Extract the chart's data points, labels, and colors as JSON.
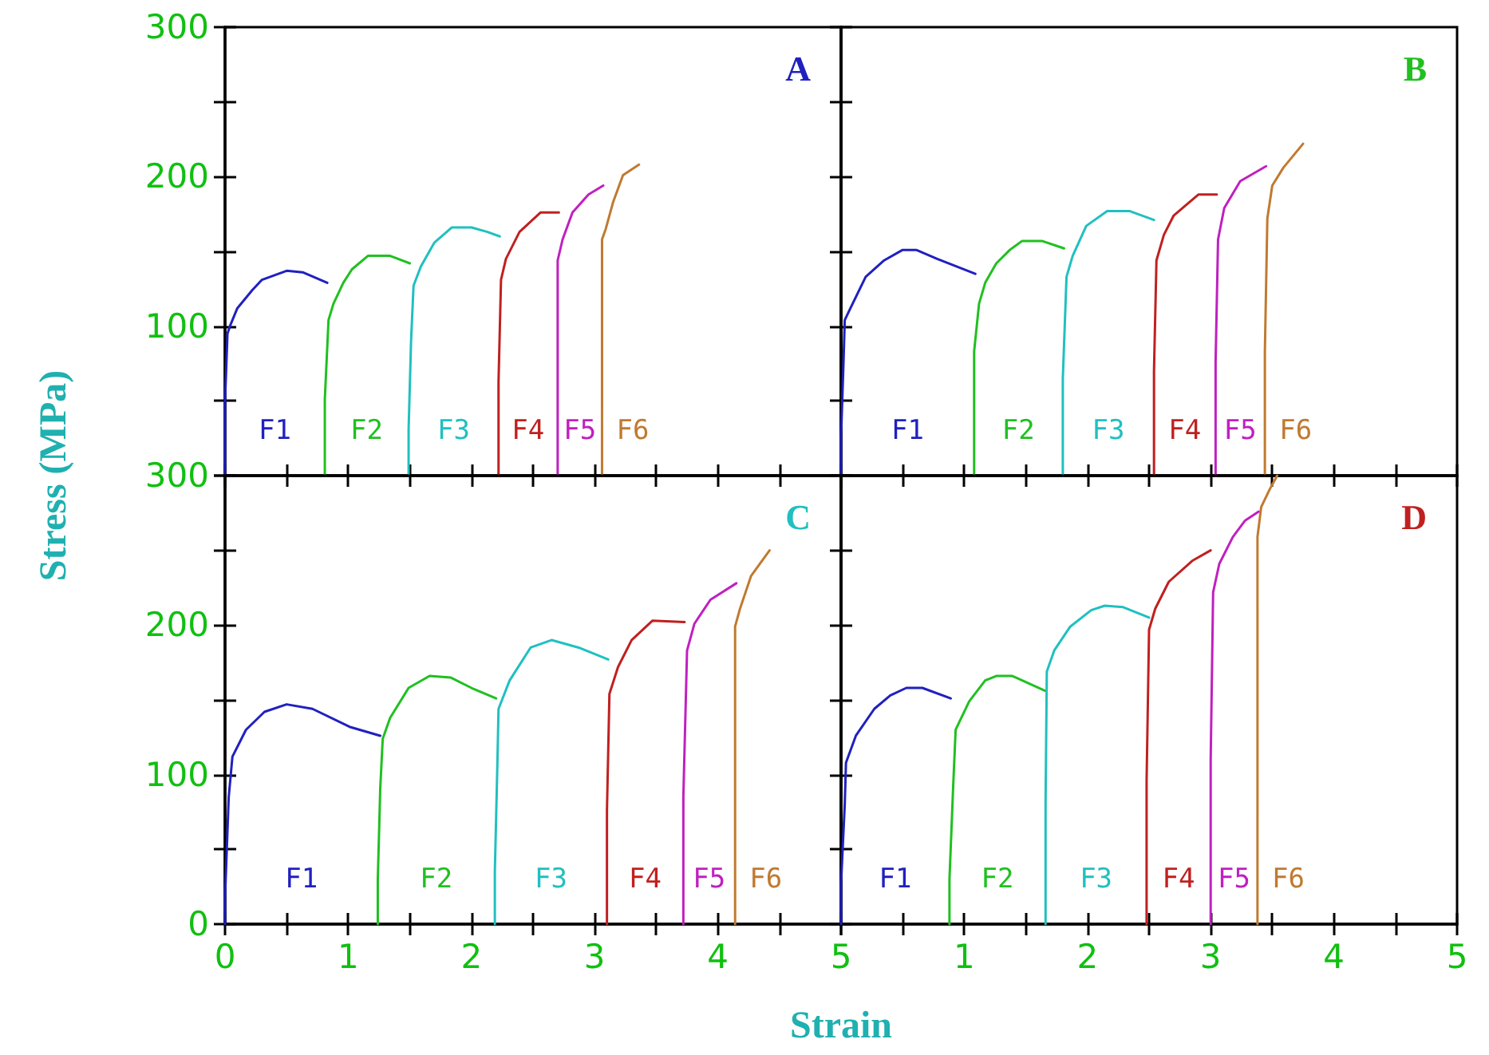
{
  "chart_data": [
    {
      "type": "line",
      "title": "A",
      "marker": "none",
      "line_style": "solid",
      "tick_labels": "y",
      "xlim": [
        0,
        5
      ],
      "ylim": [
        0,
        300
      ],
      "xticks": [
        {
          "value": 0,
          "label": null
        },
        {
          "value": 0.5,
          "label": null
        },
        {
          "value": 1,
          "label": null
        },
        {
          "value": 1.5,
          "label": null
        },
        {
          "value": 2,
          "label": null
        },
        {
          "value": 2.5,
          "label": null
        },
        {
          "value": 3,
          "label": null
        },
        {
          "value": 3.5,
          "label": null
        },
        {
          "value": 4,
          "label": null
        },
        {
          "value": 4.5,
          "label": null
        },
        {
          "value": 5,
          "label": null
        }
      ],
      "yticks": [
        {
          "value": 0,
          "label": null
        },
        {
          "value": 50,
          "label": null
        },
        100,
        {
          "value": 150,
          "label": null
        },
        200,
        {
          "value": 250,
          "label": null
        },
        300
      ],
      "series": [
        {
          "name": "F1",
          "color": "#2020c0",
          "x": [
            0,
            0,
            0.02,
            0.04,
            0.1,
            0.22,
            0.3,
            0.5,
            0.63,
            0.83
          ],
          "values": [
            0,
            50,
            95,
            100,
            112,
            124,
            131,
            137,
            136,
            129
          ]
        },
        {
          "name": "F2",
          "color": "#20c020",
          "x": [
            0.81,
            0.81,
            0.84,
            0.88,
            0.96,
            1.03,
            1.16,
            1.34,
            1.5
          ],
          "values": [
            0,
            51,
            104,
            115,
            129,
            138,
            147,
            147,
            142
          ]
        },
        {
          "name": "F3",
          "color": "#20c0c0",
          "x": [
            1.49,
            1.49,
            1.51,
            1.53,
            1.59,
            1.7,
            1.84,
            2.0,
            2.13,
            2.23
          ],
          "values": [
            0,
            31,
            90,
            127,
            140,
            156,
            166,
            166,
            163,
            160
          ]
        },
        {
          "name": "F4",
          "color": "#c02020",
          "x": [
            2.22,
            2.22,
            2.24,
            2.28,
            2.39,
            2.56,
            2.71
          ],
          "values": [
            0,
            63,
            131,
            145,
            163,
            176,
            176
          ]
        },
        {
          "name": "F5",
          "color": "#c020c0",
          "x": [
            2.7,
            2.7,
            2.74,
            2.82,
            2.95,
            3.07
          ],
          "values": [
            0,
            144,
            158,
            176,
            188,
            194
          ]
        },
        {
          "name": "F6",
          "color": "#c07a30",
          "x": [
            3.06,
            3.06,
            3.09,
            3.15,
            3.23,
            3.36
          ],
          "values": [
            0,
            158,
            165,
            183,
            201,
            208
          ]
        }
      ]
    },
    {
      "type": "line",
      "title": "B",
      "marker": "none",
      "line_style": "solid",
      "tick_labels": false,
      "xlim": [
        0,
        5
      ],
      "ylim": [
        0,
        300
      ],
      "xticks": [
        0,
        0.5,
        1,
        1.5,
        2,
        2.5,
        3,
        3.5,
        4,
        4.5,
        5
      ],
      "yticks": [
        0,
        50,
        100,
        150,
        200,
        250,
        300
      ],
      "series": [
        {
          "name": "F1",
          "color": "#2020c0",
          "x": [
            0,
            0,
            0.02,
            0.03,
            0.07,
            0.2,
            0.35,
            0.5,
            0.61,
            0.78,
            1.09
          ],
          "values": [
            0,
            26,
            76,
            104,
            111,
            133,
            144,
            151,
            151,
            145,
            135
          ]
        },
        {
          "name": "F2",
          "color": "#20c020",
          "x": [
            1.08,
            1.08,
            1.12,
            1.17,
            1.26,
            1.37,
            1.47,
            1.63,
            1.81
          ],
          "values": [
            0,
            83,
            115,
            129,
            142,
            151,
            157,
            157,
            152
          ]
        },
        {
          "name": "F3",
          "color": "#20c0c0",
          "x": [
            1.8,
            1.8,
            1.83,
            1.88,
            1.99,
            2.16,
            2.34,
            2.54
          ],
          "values": [
            0,
            65,
            133,
            147,
            167,
            177,
            177,
            171
          ]
        },
        {
          "name": "F4",
          "color": "#c02020",
          "x": [
            2.54,
            2.54,
            2.56,
            2.62,
            2.7,
            2.9,
            3.05
          ],
          "values": [
            0,
            70,
            144,
            161,
            174,
            188,
            188
          ]
        },
        {
          "name": "F5",
          "color": "#c020c0",
          "x": [
            3.04,
            3.04,
            3.06,
            3.11,
            3.24,
            3.45
          ],
          "values": [
            0,
            76,
            158,
            179,
            197,
            207
          ]
        },
        {
          "name": "F6",
          "color": "#c07a30",
          "x": [
            3.44,
            3.44,
            3.46,
            3.5,
            3.59,
            3.75
          ],
          "values": [
            0,
            83,
            172,
            194,
            206,
            222
          ]
        }
      ]
    },
    {
      "type": "line",
      "title": "C",
      "xlabel": "Strain",
      "ylabel": "Stress (MPa)",
      "marker": "none",
      "line_style": "solid",
      "xlim": [
        0,
        5
      ],
      "ylim": [
        0,
        300
      ],
      "xticks": [
        0,
        {
          "value": 0.5,
          "label": null
        },
        1,
        {
          "value": 1.5,
          "label": null
        },
        2,
        {
          "value": 2.5,
          "label": null
        },
        3,
        {
          "value": 3.5,
          "label": null
        },
        4,
        {
          "value": 4.5,
          "label": null
        },
        5
      ],
      "yticks": [
        0,
        {
          "value": 50,
          "label": null
        },
        100,
        {
          "value": 150,
          "label": null
        },
        200,
        {
          "value": 250,
          "label": null
        },
        300
      ],
      "series": [
        {
          "name": "F1",
          "color": "#2020c0",
          "x": [
            0,
            0,
            0.03,
            0.06,
            0.17,
            0.32,
            0.5,
            0.71,
            1.01,
            1.26
          ],
          "values": [
            0,
            18,
            85,
            112,
            130,
            142,
            147,
            144,
            132,
            126
          ]
        },
        {
          "name": "F2",
          "color": "#20c020",
          "x": [
            1.24,
            1.24,
            1.26,
            1.28,
            1.34,
            1.49,
            1.66,
            1.83,
            2.0,
            2.2
          ],
          "values": [
            0,
            30,
            91,
            124,
            138,
            158,
            166,
            165,
            158,
            151
          ]
        },
        {
          "name": "F3",
          "color": "#20c0c0",
          "x": [
            2.19,
            2.19,
            2.21,
            2.22,
            2.31,
            2.48,
            2.65,
            2.87,
            3.11
          ],
          "values": [
            0,
            35,
            105,
            144,
            163,
            185,
            190,
            185,
            177
          ]
        },
        {
          "name": "F4",
          "color": "#c02020",
          "x": [
            3.1,
            3.1,
            3.12,
            3.19,
            3.3,
            3.47,
            3.73
          ],
          "values": [
            0,
            76,
            154,
            172,
            190,
            203,
            202
          ]
        },
        {
          "name": "F5",
          "color": "#c020c0",
          "x": [
            3.72,
            3.72,
            3.75,
            3.81,
            3.94,
            4.15
          ],
          "values": [
            0,
            85,
            183,
            201,
            217,
            228
          ]
        },
        {
          "name": "F6",
          "color": "#c07a30",
          "x": [
            4.14,
            4.14,
            4.18,
            4.27,
            4.42
          ],
          "values": [
            0,
            199,
            211,
            233,
            250
          ]
        }
      ]
    },
    {
      "type": "line",
      "title": "D",
      "marker": "none",
      "line_style": "solid",
      "tick_labels": "x",
      "xlim": [
        0,
        5
      ],
      "ylim": [
        0,
        300
      ],
      "xticks": [
        {
          "value": 0,
          "label": null
        },
        {
          "value": 0.5,
          "label": null
        },
        1,
        {
          "value": 1.5,
          "label": null
        },
        2,
        {
          "value": 2.5,
          "label": null
        },
        3,
        {
          "value": 3.5,
          "label": null
        },
        4,
        {
          "value": 4.5,
          "label": null
        },
        5
      ],
      "yticks": [
        0,
        50,
        100,
        150,
        200,
        250,
        300
      ],
      "series": [
        {
          "name": "F1",
          "color": "#2020c0",
          "x": [
            0,
            0,
            0.03,
            0.04,
            0.12,
            0.27,
            0.4,
            0.53,
            0.66,
            0.89
          ],
          "values": [
            0,
            27,
            80,
            108,
            126,
            144,
            153,
            158,
            158,
            151
          ]
        },
        {
          "name": "F2",
          "color": "#20c020",
          "x": [
            0.88,
            0.88,
            0.91,
            0.93,
            1.04,
            1.17,
            1.26,
            1.39,
            1.66
          ],
          "values": [
            0,
            30,
            92,
            130,
            149,
            163,
            166,
            166,
            156
          ]
        },
        {
          "name": "F3",
          "color": "#20c0c0",
          "x": [
            1.66,
            1.66,
            1.67,
            1.73,
            1.86,
            2.03,
            2.14,
            2.29,
            2.5
          ],
          "values": [
            0,
            82,
            169,
            183,
            199,
            210,
            213,
            212,
            205
          ]
        },
        {
          "name": "F4",
          "color": "#c02020",
          "x": [
            2.48,
            2.48,
            2.5,
            2.55,
            2.66,
            2.85,
            3.0
          ],
          "values": [
            0,
            96,
            197,
            211,
            229,
            243,
            250
          ]
        },
        {
          "name": "F5",
          "color": "#c020c0",
          "x": [
            3.0,
            3.0,
            3.02,
            3.07,
            3.18,
            3.28,
            3.39
          ],
          "values": [
            0,
            110,
            222,
            241,
            259,
            270,
            276
          ]
        },
        {
          "name": "F6",
          "color": "#c07a30",
          "x": [
            3.38,
            3.38,
            3.41,
            3.48,
            3.54
          ],
          "values": [
            0,
            259,
            279,
            291,
            300
          ]
        }
      ]
    }
  ]
}
